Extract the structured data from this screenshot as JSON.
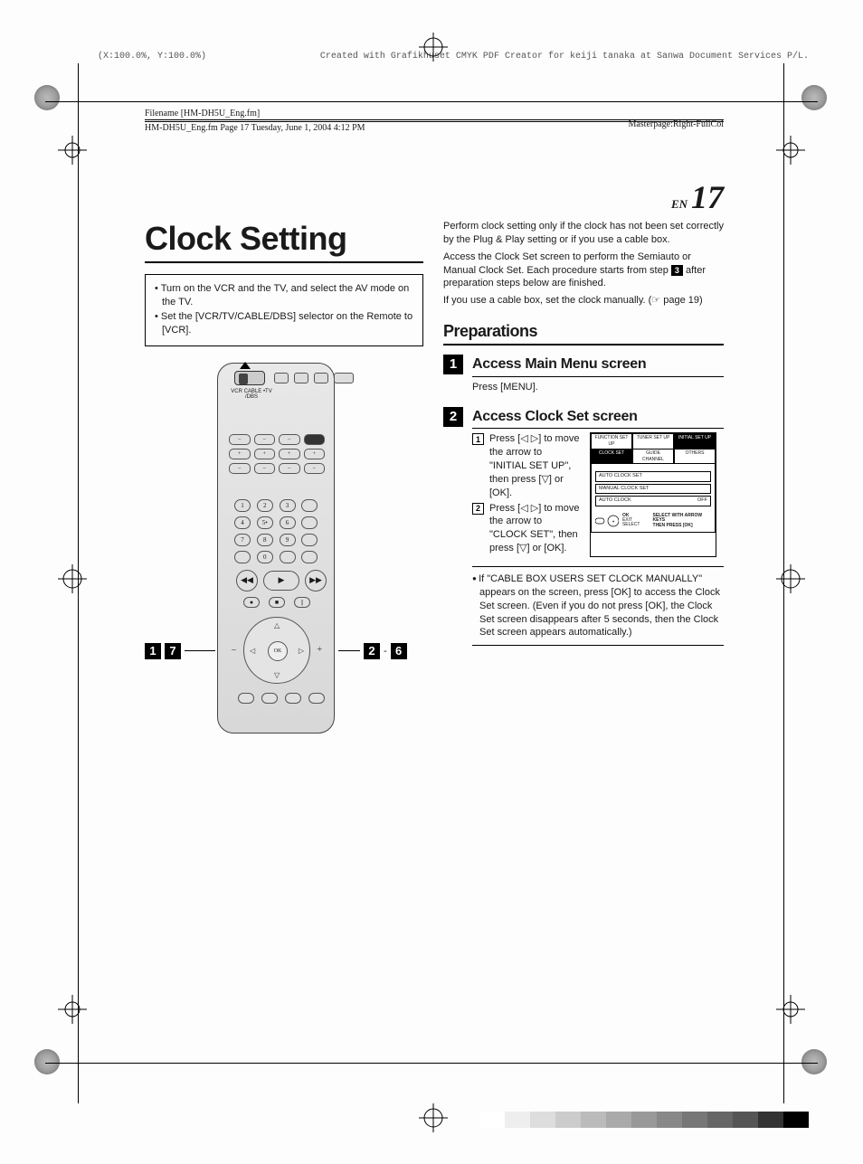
{
  "header": {
    "scale": "(X:100.0%, Y:100.0%)",
    "created": "Created with Grafikhuset CMYK PDF Creator for keiji tanaka at Sanwa Document Services P/L.",
    "filename_label": "Filename [HM-DH5U_Eng.fm]",
    "running": "HM-DH5U_Eng.fm  Page 17  Tuesday, June 1, 2004  4:12 PM",
    "masterpage": "Masterpage:Right-FullCol"
  },
  "page_number": {
    "prefix": "EN",
    "num": "17"
  },
  "title": "Clock Setting",
  "intro_bullets": [
    "Turn on the VCR and the TV, and select the AV mode on the TV.",
    "Set the [VCR/TV/CABLE/DBS] selector on the Remote to [VCR]."
  ],
  "remote": {
    "slider_labels": "VCR  CABLE\n•TV   /DBS",
    "ok_label": "OK",
    "num_labels": [
      "1",
      "2",
      "3",
      "",
      "4",
      "5•",
      "6",
      "",
      "7",
      "8",
      "9",
      "",
      ".",
      "0",
      ".",
      ""
    ],
    "plus_minus": [
      "–",
      "+",
      "–",
      "+",
      "–",
      "–",
      "–",
      "–"
    ],
    "transport_play": "▶",
    "transport_rw": "◀◀",
    "transport_ff": "▶▶",
    "small_row": [
      "●",
      "■",
      "||"
    ]
  },
  "callouts": {
    "left": [
      "1",
      "7"
    ],
    "right": [
      "2",
      "6"
    ],
    "right_sep": "-"
  },
  "right_intro": [
    "Perform clock setting only if the clock has not been set correctly by the Plug & Play setting or if you use a cable box.",
    "Access the Clock Set screen to perform the Semiauto or Manual Clock Set. Each procedure starts from step",
    "after preparation steps below are finished.",
    "If you use a cable box, set the clock manually. (☞  page 19)"
  ],
  "right_intro_chip": "3",
  "prep_heading": "Preparations",
  "step1": {
    "num": "1",
    "title": "Access Main Menu screen",
    "body": "Press [MENU]."
  },
  "step2": {
    "num": "2",
    "title": "Access Clock Set screen",
    "subs": [
      {
        "n": "1",
        "text": "Press [◁ ▷] to move the arrow to \"INITIAL SET UP\", then press [▽] or [OK]."
      },
      {
        "n": "2",
        "text": "Press [◁ ▷] to move the arrow to \"CLOCK SET\", then press [▽] or [OK]."
      }
    ]
  },
  "screen": {
    "tabs": [
      "FUNCTION SET UP",
      "TUNER SET UP",
      "INITIAL SET UP"
    ],
    "active_tab": 2,
    "row2": [
      "CLOCK SET",
      "GUIDE CHANNEL",
      "OTHERS"
    ],
    "row2_sel": 0,
    "lines": [
      {
        "l": "AUTO CLOCK SET",
        "r": ""
      },
      {
        "l": "MANUAL CLOCK SET",
        "r": ""
      },
      {
        "l": "AUTO CLOCK",
        "r": "OFF"
      }
    ],
    "foot_left": "EXIT   SELECT",
    "foot_ok": "OK",
    "foot_hint": "SELECT WITH ARROW KEYS\nTHEN PRESS [OK]"
  },
  "note": "If \"CABLE BOX USERS SET CLOCK MANUALLY\" appears on the screen, press [OK] to access the Clock Set screen. (Even if you do not press [OK], the Clock Set screen disappears after 5 seconds, then the Clock Set screen appears automatically.)",
  "grayscale_colors": [
    "#ffffff",
    "#eeeeee",
    "#dddddd",
    "#cccccc",
    "#bbbbbb",
    "#aaaaaa",
    "#999999",
    "#888888",
    "#777777",
    "#666666",
    "#555555",
    "#333333",
    "#000000"
  ]
}
